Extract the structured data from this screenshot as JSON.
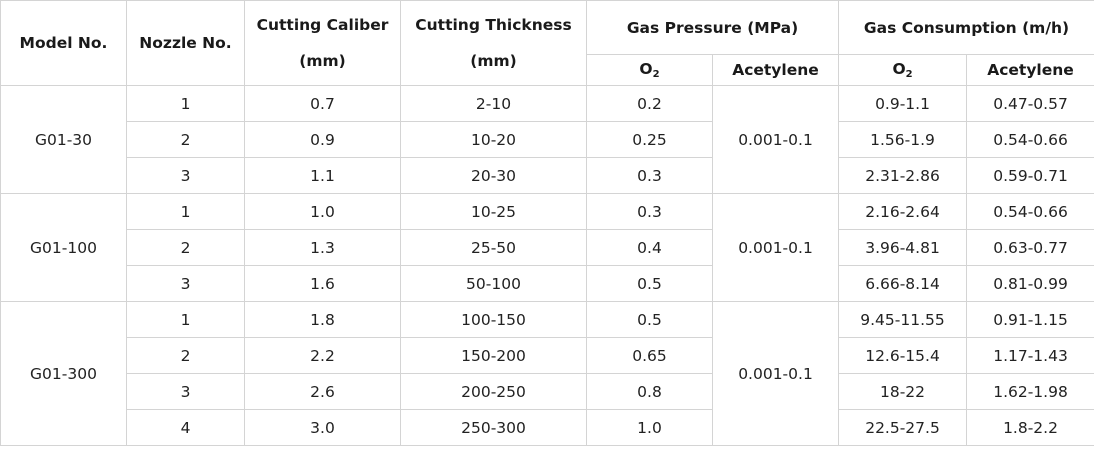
{
  "headers": {
    "model": "Model No.",
    "nozzle": "Nozzle No.",
    "caliber_line1": "Cutting Caliber",
    "caliber_line2": "(mm)",
    "thickness_line1": "Cutting Thickness",
    "thickness_line2": "(mm)",
    "pressure": "Gas Pressure (MPa)",
    "consumption": "Gas Consumption (m/h)",
    "o2_main": "O",
    "o2_sub": "2",
    "acetylene": "Acetylene"
  },
  "groups": [
    {
      "model": "G01-30",
      "acetylene_pressure": "0.001-0.1",
      "rows": [
        {
          "nozzle": "1",
          "caliber": "0.7",
          "thickness": "2-10",
          "o2_pressure": "0.2",
          "o2_consumption": "0.9-1.1",
          "acetylene_consumption": "0.47-0.57"
        },
        {
          "nozzle": "2",
          "caliber": "0.9",
          "thickness": "10-20",
          "o2_pressure": "0.25",
          "o2_consumption": "1.56-1.9",
          "acetylene_consumption": "0.54-0.66"
        },
        {
          "nozzle": "3",
          "caliber": "1.1",
          "thickness": "20-30",
          "o2_pressure": "0.3",
          "o2_consumption": "2.31-2.86",
          "acetylene_consumption": "0.59-0.71"
        }
      ]
    },
    {
      "model": "G01-100",
      "acetylene_pressure": "0.001-0.1",
      "rows": [
        {
          "nozzle": "1",
          "caliber": "1.0",
          "thickness": "10-25",
          "o2_pressure": "0.3",
          "o2_consumption": "2.16-2.64",
          "acetylene_consumption": "0.54-0.66"
        },
        {
          "nozzle": "2",
          "caliber": "1.3",
          "thickness": "25-50",
          "o2_pressure": "0.4",
          "o2_consumption": "3.96-4.81",
          "acetylene_consumption": "0.63-0.77"
        },
        {
          "nozzle": "3",
          "caliber": "1.6",
          "thickness": "50-100",
          "o2_pressure": "0.5",
          "o2_consumption": "6.66-8.14",
          "acetylene_consumption": "0.81-0.99"
        }
      ]
    },
    {
      "model": "G01-300",
      "acetylene_pressure": "0.001-0.1",
      "rows": [
        {
          "nozzle": "1",
          "caliber": "1.8",
          "thickness": "100-150",
          "o2_pressure": "0.5",
          "o2_consumption": "9.45-11.55",
          "acetylene_consumption": "0.91-1.15"
        },
        {
          "nozzle": "2",
          "caliber": "2.2",
          "thickness": "150-200",
          "o2_pressure": "0.65",
          "o2_consumption": "12.6-15.4",
          "acetylene_consumption": "1.17-1.43"
        },
        {
          "nozzle": "3",
          "caliber": "2.6",
          "thickness": "200-250",
          "o2_pressure": "0.8",
          "o2_consumption": "18-22",
          "acetylene_consumption": "1.62-1.98"
        },
        {
          "nozzle": "4",
          "caliber": "3.0",
          "thickness": "250-300",
          "o2_pressure": "1.0",
          "o2_consumption": "22.5-27.5",
          "acetylene_consumption": "1.8-2.2"
        }
      ]
    }
  ]
}
